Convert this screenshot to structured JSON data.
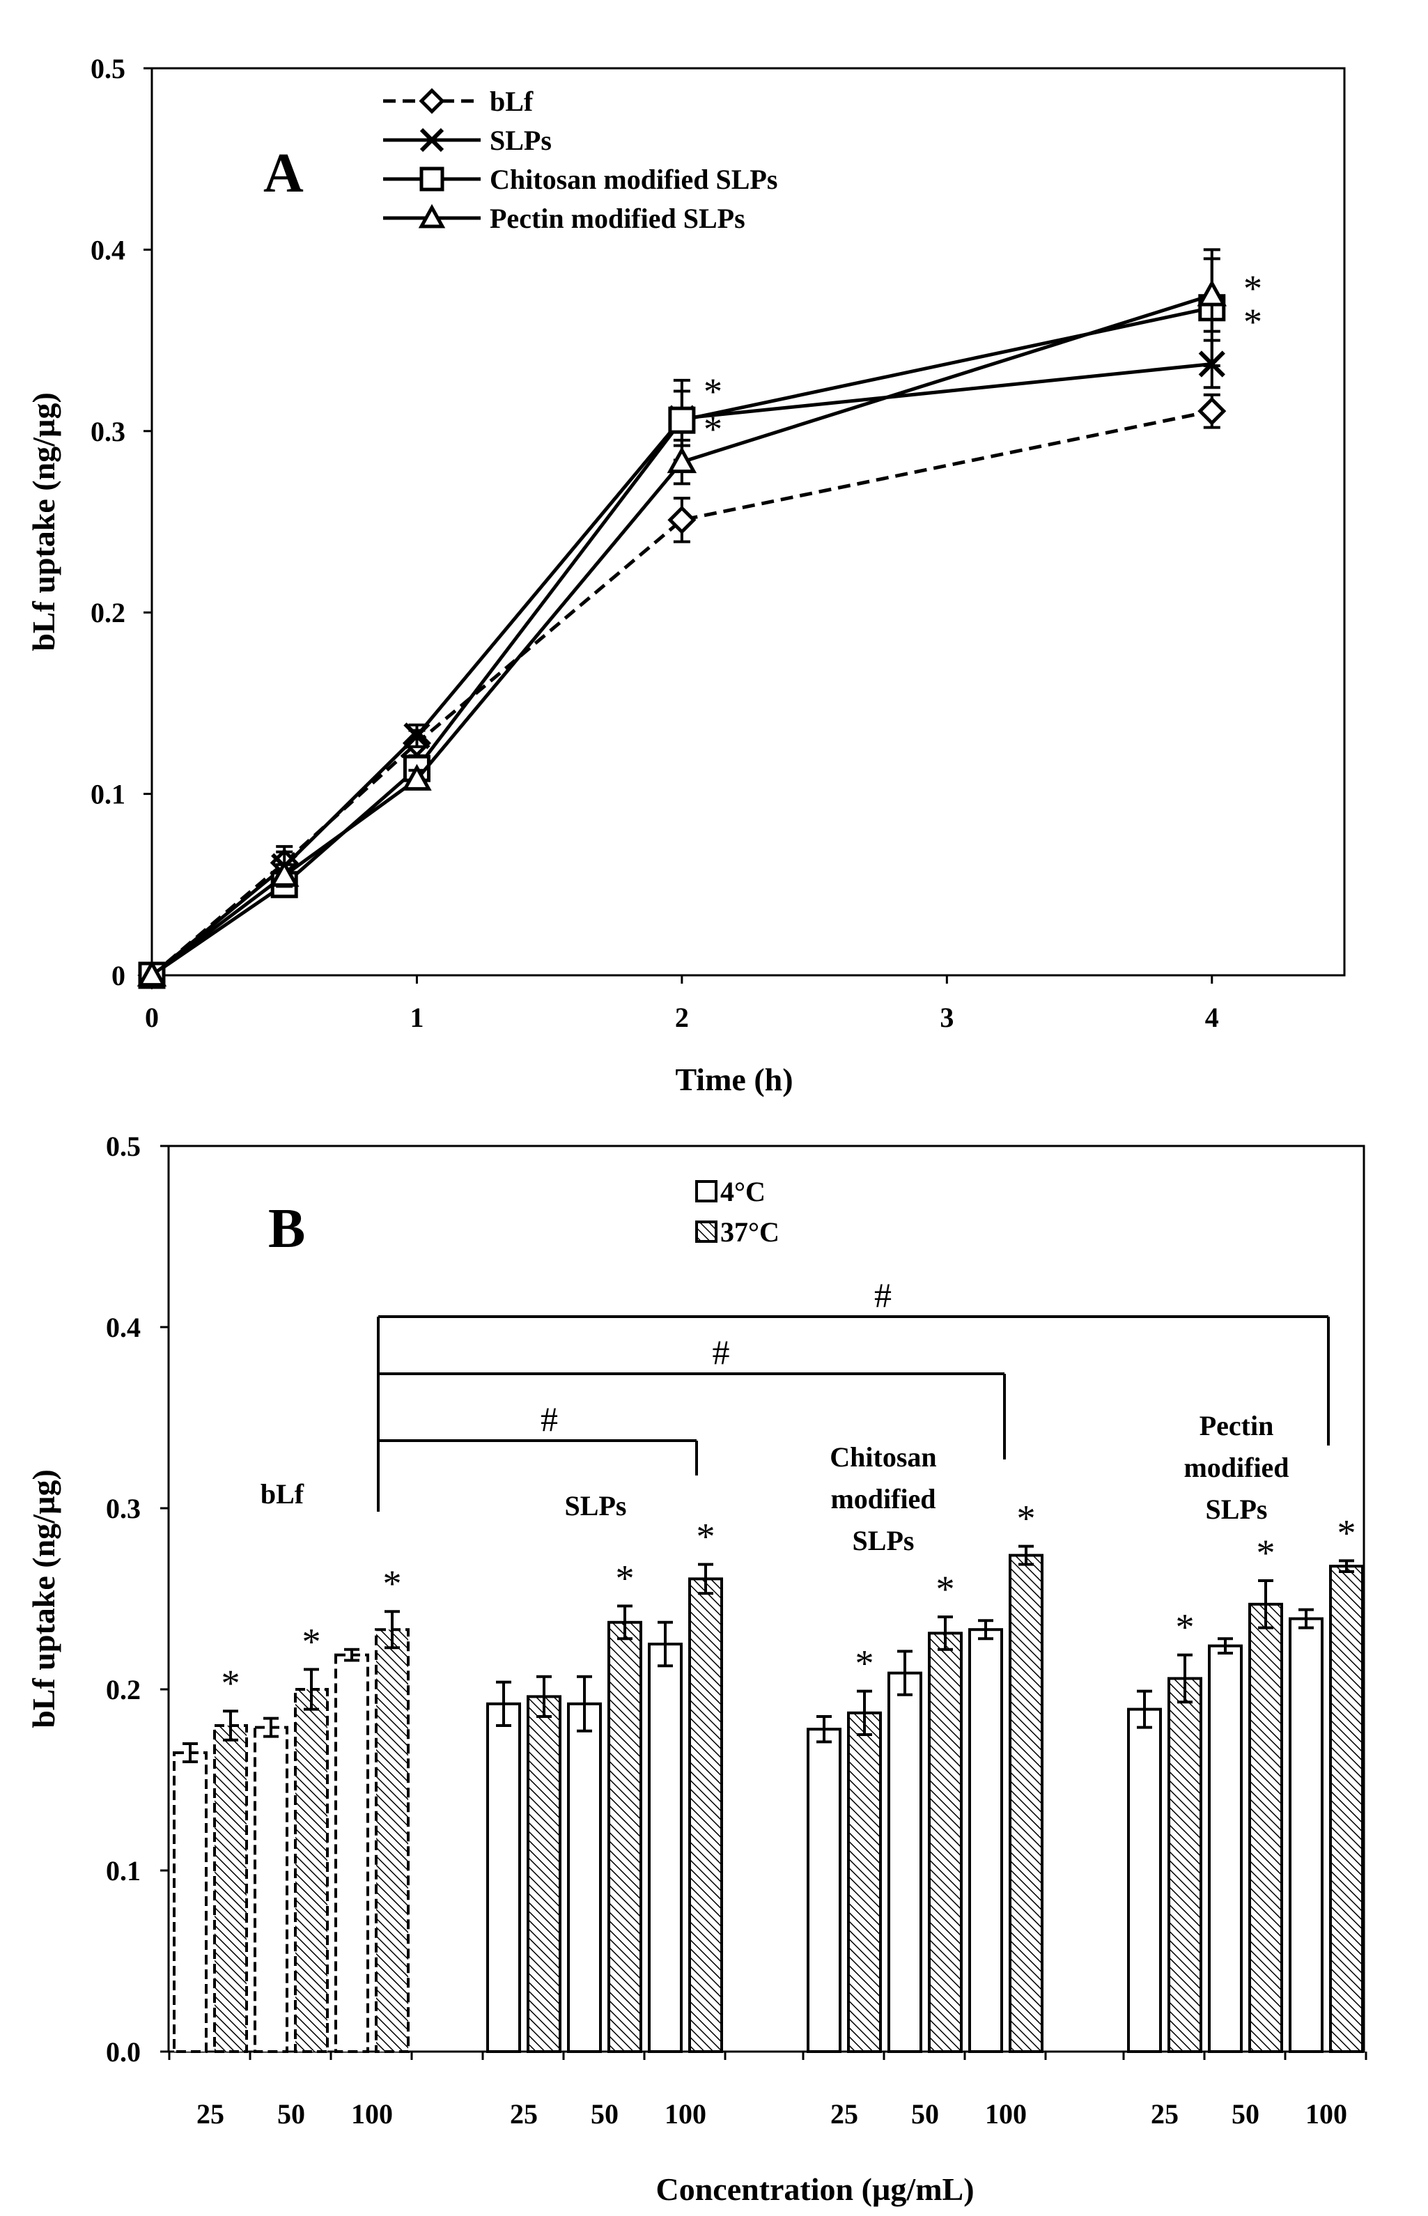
{
  "chart_data": [
    {
      "type": "line",
      "panel_label": "A",
      "xlabel": "Time (h)",
      "ylabel": "bLf uptake (ng/µg)",
      "x_categories": [
        "0",
        "1",
        "2",
        "3",
        "4"
      ],
      "x_values": [
        0,
        0.5,
        1,
        2,
        4
      ],
      "ylim": [
        0,
        0.5
      ],
      "y_ticks": [
        "0",
        "0.1",
        "0.2",
        "0.3",
        "0.4",
        "0.5"
      ],
      "legend_position": "top-left",
      "series": [
        {
          "name": "bLf",
          "marker": "diamond",
          "line": "dashed",
          "values": [
            0,
            0.062,
            0.128,
            0.251,
            0.311
          ],
          "errors": [
            0,
            0.009,
            0.007,
            0.012,
            0.009
          ]
        },
        {
          "name": "SLPs",
          "marker": "x",
          "line": "solid",
          "values": [
            0,
            0.06,
            0.132,
            0.307,
            0.337
          ],
          "errors": [
            0,
            0.008,
            0.006,
            0.015,
            0.013
          ]
        },
        {
          "name": "Chitosan modified SLPs",
          "marker": "square",
          "line": "solid",
          "values": [
            0,
            0.05,
            0.114,
            0.306,
            0.368
          ],
          "errors": [
            0,
            0.006,
            0.006,
            0.022,
            0.032
          ]
        },
        {
          "name": "Pectin modified SLPs",
          "marker": "triangle",
          "line": "solid",
          "values": [
            0,
            0.055,
            0.108,
            0.283,
            0.375
          ],
          "errors": [
            0,
            0.006,
            0.005,
            0.012,
            0.02
          ]
        }
      ],
      "annotations": [
        "*",
        "*",
        "*",
        "*"
      ]
    },
    {
      "type": "bar",
      "panel_label": "B",
      "xlabel": "Concentration (µg/mL)",
      "ylabel": "bLf uptake (ng/µg)",
      "ylim": [
        0,
        0.5
      ],
      "y_ticks": [
        "0.0",
        "0.1",
        "0.2",
        "0.3",
        "0.4",
        "0.5"
      ],
      "concentrations": [
        "25",
        "50",
        "100"
      ],
      "legend": [
        "4°C",
        "37°C"
      ],
      "legend_position": "top-center",
      "groups": [
        {
          "label": [
            "bLf"
          ],
          "values_4C": [
            0.165,
            0.179,
            0.219
          ],
          "errors_4C": [
            0.005,
            0.005,
            0.003
          ],
          "values_37C": [
            0.18,
            0.2,
            0.233
          ],
          "errors_37C": [
            0.008,
            0.011,
            0.01
          ],
          "stars": [
            "*",
            "*",
            "*"
          ]
        },
        {
          "label": [
            "SLPs"
          ],
          "values_4C": [
            0.192,
            0.192,
            0.225
          ],
          "errors_4C": [
            0.012,
            0.015,
            0.012
          ],
          "values_37C": [
            0.196,
            0.237,
            0.261
          ],
          "errors_37C": [
            0.011,
            0.009,
            0.008
          ],
          "stars": [
            "*",
            "*"
          ]
        },
        {
          "label": [
            "Chitosan",
            "modified",
            "SLPs"
          ],
          "values_4C": [
            0.178,
            0.209,
            0.233
          ],
          "errors_4C": [
            0.007,
            0.012,
            0.005
          ],
          "values_37C": [
            0.187,
            0.231,
            0.274
          ],
          "errors_37C": [
            0.012,
            0.009,
            0.005
          ],
          "stars": [
            "*",
            "*",
            "*"
          ]
        },
        {
          "label": [
            "Pectin",
            "modified",
            "SLPs"
          ],
          "values_4C": [
            0.189,
            0.224,
            0.239
          ],
          "errors_4C": [
            0.01,
            0.004,
            0.005
          ],
          "values_37C": [
            0.206,
            0.247,
            0.268
          ],
          "errors_37C": [
            0.013,
            0.013,
            0.003
          ],
          "stars": [
            "*",
            "*",
            "*"
          ]
        }
      ],
      "significance": [
        "#",
        "#",
        "#"
      ]
    }
  ]
}
